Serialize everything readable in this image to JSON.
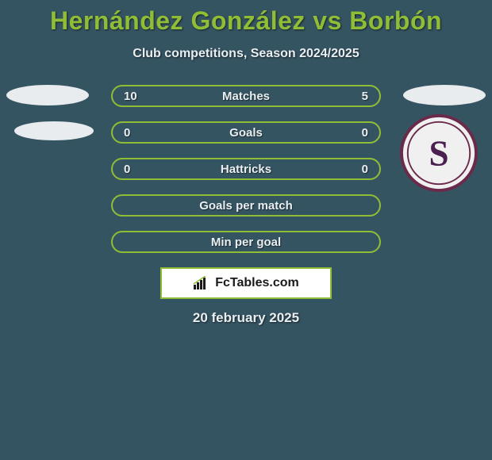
{
  "colors": {
    "background": "#355462",
    "accent": "#8fbe36",
    "pill_border": "#8fbe36",
    "pill_bg": "#355462",
    "title_color": "#8fbe36",
    "text_white": "#e9eef0",
    "ellipse_white": "#e8ecee",
    "brand_border": "#8fbe36",
    "brand_bg": "#ffffff",
    "brand_text": "#1a1a1a",
    "logo_ring": "#6b2a4a",
    "logo_inner": "#f0f0f0",
    "logo_s": "#4a2050"
  },
  "header": {
    "title": "Hernández González vs Borbón",
    "subtitle": "Club competitions, Season 2024/2025"
  },
  "rows": [
    {
      "label": "Matches",
      "left": "10",
      "right": "5",
      "has_values": true
    },
    {
      "label": "Goals",
      "left": "0",
      "right": "0",
      "has_values": true
    },
    {
      "label": "Hattricks",
      "left": "0",
      "right": "0",
      "has_values": true
    },
    {
      "label": "Goals per match",
      "left": "",
      "right": "",
      "has_values": false
    },
    {
      "label": "Min per goal",
      "left": "",
      "right": "",
      "has_values": false
    }
  ],
  "brand": "FcTables.com",
  "date": "20 february 2025"
}
